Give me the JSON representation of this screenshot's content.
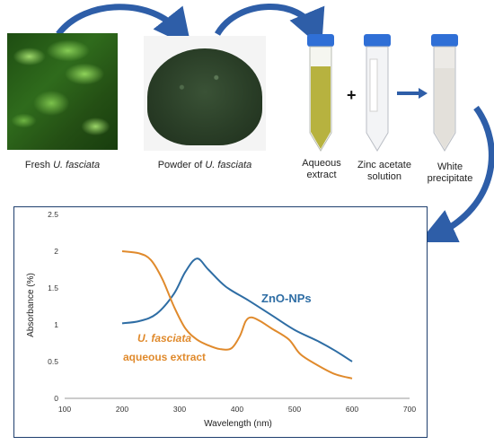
{
  "steps": [
    {
      "caption_pre": "Fresh ",
      "caption_italic": "U. fasciata",
      "caption_post": ""
    },
    {
      "caption_pre": "Powder of ",
      "caption_italic": "U. fasciata",
      "caption_post": ""
    },
    {
      "caption_line1": "Aqueous",
      "caption_line2": "extract"
    },
    {
      "caption_line1": "Zinc acetate",
      "caption_line2": "solution"
    },
    {
      "caption_line1": "White",
      "caption_line2": "precipitate"
    }
  ],
  "operators": {
    "plus": "+"
  },
  "colors": {
    "arrow_blue": "#2e5ea8",
    "frame": "#1f3f6e",
    "zno_series": "#2e6da4",
    "extract_series": "#e08a2c",
    "cap_blue": "#2f6fd6"
  },
  "chart_data": {
    "type": "line",
    "xlabel": "Wavelength (nm)",
    "ylabel": "Absorbance (%)",
    "xlim": [
      100,
      700
    ],
    "ylim": [
      0,
      2.5
    ],
    "xticks": [
      "100",
      "200",
      "300",
      "400",
      "500",
      "600",
      "700"
    ],
    "yticks": [
      "0",
      "0.5",
      "1",
      "1.5",
      "2",
      "2.5"
    ],
    "grid": false,
    "series": [
      {
        "name": "ZnO-NPs",
        "color": "#2e6da4",
        "x": [
          200,
          230,
          260,
          290,
          310,
          330,
          350,
          380,
          420,
          460,
          500,
          540,
          570,
          600
        ],
        "y": [
          1.02,
          1.05,
          1.15,
          1.42,
          1.72,
          1.9,
          1.75,
          1.52,
          1.33,
          1.13,
          0.93,
          0.78,
          0.65,
          0.5
        ]
      },
      {
        "name_pre": "U. fasciata",
        "name_post": "aqueous extract",
        "color": "#e08a2c",
        "x": [
          200,
          230,
          250,
          270,
          290,
          310,
          330,
          350,
          370,
          390,
          405,
          415,
          425,
          440,
          460,
          490,
          510,
          540,
          570,
          600
        ],
        "y": [
          2.0,
          1.97,
          1.88,
          1.62,
          1.25,
          0.95,
          0.8,
          0.72,
          0.67,
          0.68,
          0.85,
          1.05,
          1.1,
          1.05,
          0.95,
          0.8,
          0.6,
          0.45,
          0.33,
          0.27
        ]
      }
    ]
  }
}
